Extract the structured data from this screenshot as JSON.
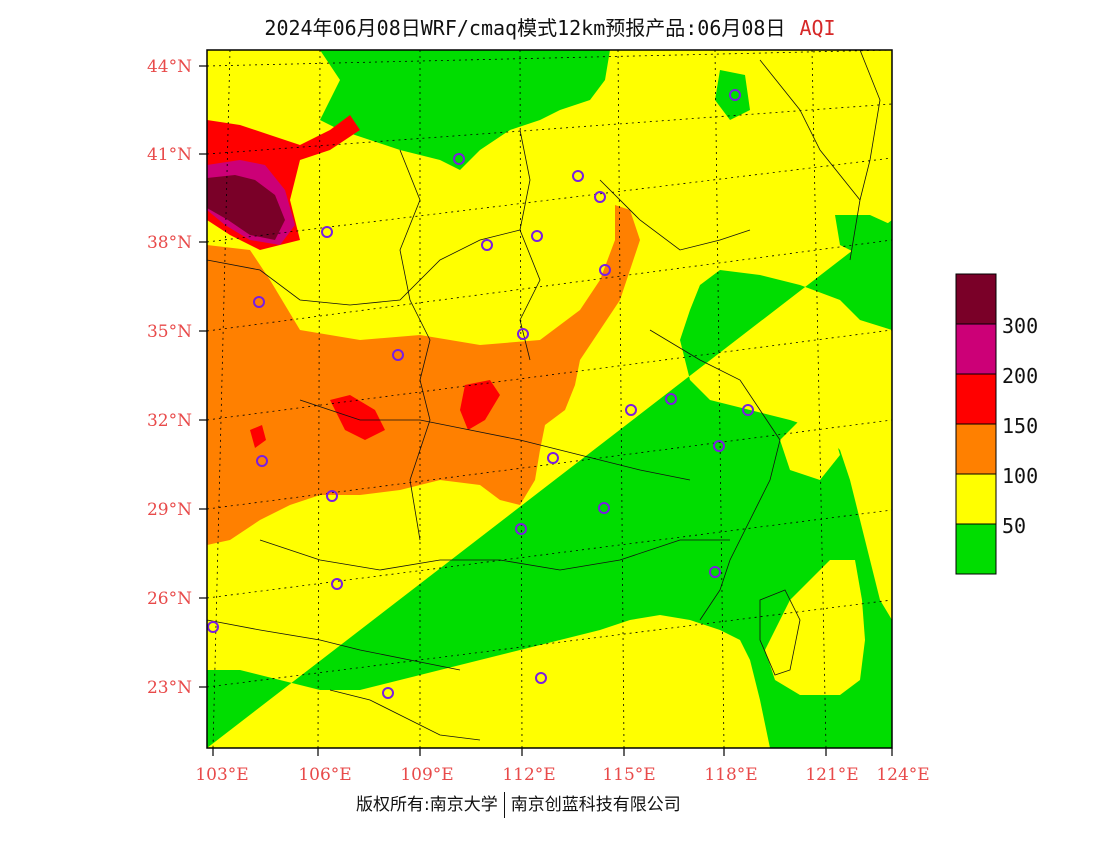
{
  "header": {
    "title": "2024年06月08日WRF/cmaq模式12km预报产品:06月08日",
    "product": "AQI"
  },
  "axes": {
    "lat_labels": [
      "44°N",
      "41°N",
      "38°N",
      "35°N",
      "32°N",
      "29°N",
      "26°N",
      "23°N"
    ],
    "lon_labels": [
      "103°E",
      "106°E",
      "109°E",
      "112°E",
      "115°E",
      "118°E",
      "121°E",
      "124°E"
    ]
  },
  "legend": {
    "labels": [
      "300",
      "200",
      "150",
      "100",
      "50"
    ],
    "colors": [
      "#7a0028",
      "#cc0077",
      "#ff0000",
      "#ff8000",
      "#ffff00",
      "#00dd00"
    ]
  },
  "footer": {
    "copyright": "版权所有:南京大学",
    "company": "南京创蓝科技有限公司"
  }
}
